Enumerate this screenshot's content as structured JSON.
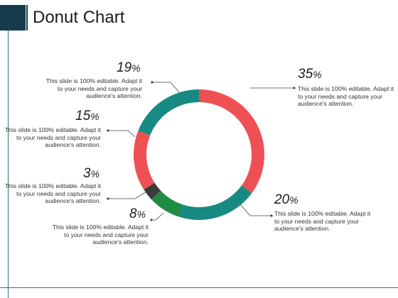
{
  "page": {
    "title": "Donut Chart"
  },
  "chart_data": {
    "type": "pie",
    "variant": "donut",
    "categories": [
      "35%",
      "20%",
      "8%",
      "3%",
      "15%",
      "19%"
    ],
    "values": [
      35,
      20,
      8,
      3,
      15,
      19
    ],
    "colors": [
      "#ee5054",
      "#178a84",
      "#1f8c43",
      "#3b3b3b",
      "#ee5054",
      "#178a84"
    ],
    "labels": [
      {
        "pct": "35",
        "sign": "%",
        "text": "This slide is 100% editable. Adapt it to your needs and capture your audience's attention."
      },
      {
        "pct": "20",
        "sign": "%",
        "text": "This slide is 100% editable. Adapt it to your needs and capture your audience's attention."
      },
      {
        "pct": "8",
        "sign": "%",
        "text": "This slide is 100% editable. Adapt it to your needs and capture your audience's attention."
      },
      {
        "pct": "3",
        "sign": "%",
        "text": "This slide is 100% editable. Adapt it to your needs and capture your audience's attention."
      },
      {
        "pct": "15",
        "sign": "%",
        "text": "This slide is 100% editable. Adapt it to your needs and capture your audience's attention."
      },
      {
        "pct": "19",
        "sign": "%",
        "text": "This slide is 100% editable. Adapt it to your needs and capture your audience's attention."
      }
    ]
  }
}
